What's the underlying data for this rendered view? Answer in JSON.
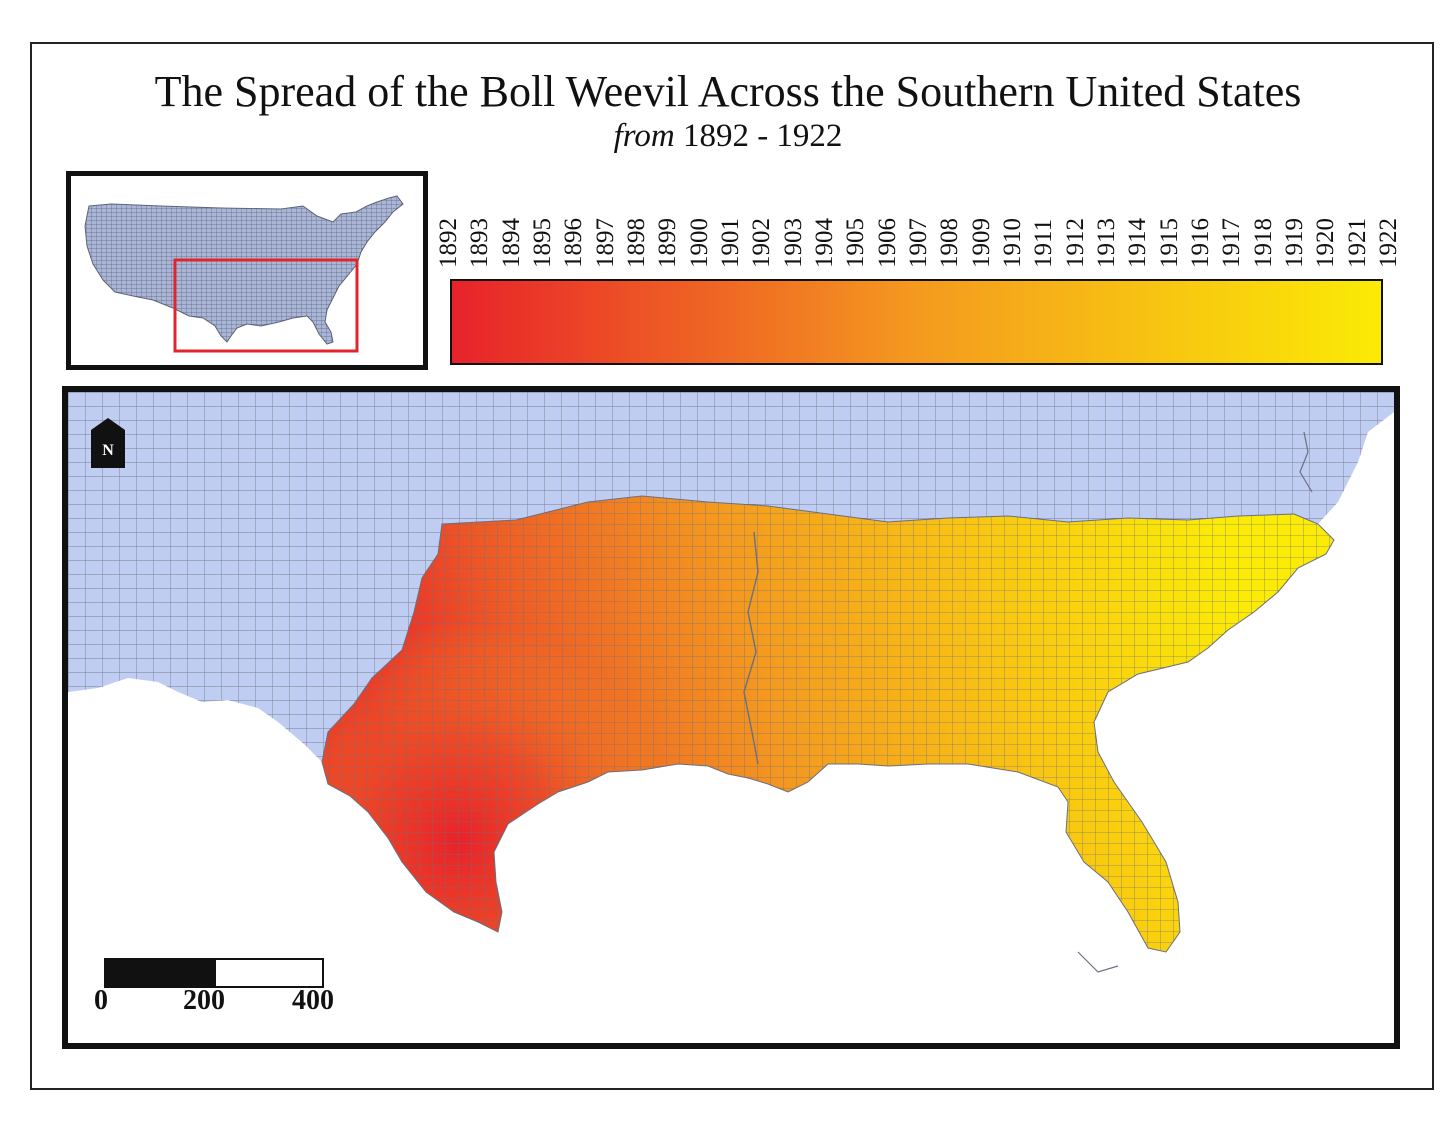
{
  "title": "The Spread of the Boll Weevil Across the Southern United States",
  "subtitle": {
    "prefix": "from",
    "range": "1892 - 1922"
  },
  "legend": {
    "years": [
      "1892",
      "1893",
      "1894",
      "1895",
      "1896",
      "1897",
      "1898",
      "1899",
      "1900",
      "1901",
      "1902",
      "1903",
      "1904",
      "1905",
      "1906",
      "1907",
      "1908",
      "1909",
      "1910",
      "1911",
      "1912",
      "1913",
      "1914",
      "1915",
      "1916",
      "1917",
      "1918",
      "1919",
      "1920",
      "1921",
      "1922"
    ],
    "color_start": "#e8222a",
    "color_mid": "#f49a1f",
    "color_end": "#fbeb05"
  },
  "map": {
    "unaffected_color": "#c0cdf2",
    "county_line_color": "#6b6f80",
    "inset_highlight_color": "#e0262c"
  },
  "north_arrow": {
    "label": "N"
  },
  "scale": {
    "labels": [
      "0",
      "200",
      "400"
    ]
  }
}
